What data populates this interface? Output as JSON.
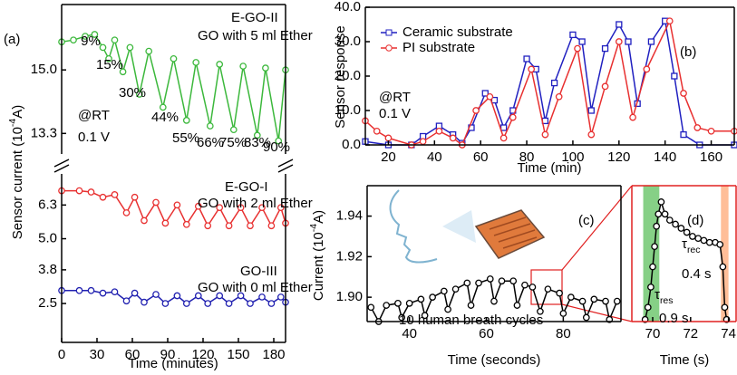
{
  "chart_data": [
    {
      "type": "line",
      "panel_label": "(a)",
      "xlim": [
        0,
        190
      ],
      "ylim": [
        12.75,
        16.75
      ],
      "yticks": [
        13.3,
        {
          "value": 15,
          "label": "15.0"
        }
      ],
      "annotations": [
        "E-GO-II",
        "GO with 5 ml Ether",
        "@RT",
        "0.1 V"
      ],
      "percent_labels": [
        "9%",
        "15%",
        "30%",
        "44%",
        "55%",
        "66%",
        "75%",
        "83%",
        "90%"
      ],
      "series": [
        {
          "name": "E-GO-II",
          "color": "#3cb83c",
          "marker": "circle",
          "x": [
            0,
            10,
            20,
            28,
            35,
            40,
            45,
            52,
            58,
            66,
            74,
            86,
            95,
            106,
            114,
            126,
            134,
            146,
            154,
            166,
            173,
            184,
            190
          ],
          "values": [
            15.75,
            15.8,
            15.9,
            15.95,
            15.6,
            15.3,
            15.8,
            14.95,
            15.6,
            14.35,
            15.5,
            14.0,
            15.3,
            13.65,
            15.2,
            13.5,
            15.15,
            13.4,
            15.1,
            13.25,
            15.05,
            13.1,
            15.0
          ]
        }
      ]
    },
    {
      "type": "line",
      "xlim": [
        0,
        190
      ],
      "xticks": [
        0,
        30,
        60,
        90,
        120,
        150,
        180
      ],
      "xlabel": "Time (minutes)",
      "ylim": [
        1.0,
        7.5
      ],
      "yticks": [
        2.5,
        3.8,
        {
          "value": 5,
          "label": "5.0"
        },
        6.3
      ],
      "ylabel": [
        "Sensor current (10",
        "-4",
        "A)"
      ],
      "annotations": [
        "E-GO-I",
        "GO with 2 ml Ether",
        "GO-III",
        "GO with 0 ml Ether"
      ],
      "series": [
        {
          "name": "E-GO-I",
          "color": "#e83030",
          "marker": "circle",
          "x": [
            0,
            15,
            25,
            35,
            45,
            55,
            62,
            70,
            80,
            88,
            98,
            106,
            116,
            124,
            134,
            142,
            152,
            160,
            170,
            178,
            186,
            190
          ],
          "values": [
            6.85,
            6.85,
            6.8,
            6.6,
            6.7,
            6.0,
            6.6,
            5.7,
            6.4,
            5.6,
            6.3,
            5.55,
            6.25,
            5.5,
            6.2,
            5.5,
            6.2,
            5.5,
            6.2,
            5.5,
            6.2,
            5.6
          ]
        },
        {
          "name": "GO-III",
          "color": "#2020b0",
          "marker": "circle",
          "x": [
            0,
            15,
            25,
            35,
            45,
            55,
            62,
            70,
            80,
            88,
            98,
            106,
            116,
            124,
            134,
            142,
            152,
            160,
            170,
            178,
            186,
            190
          ],
          "values": [
            3.0,
            3.0,
            3.0,
            2.9,
            2.95,
            2.6,
            2.9,
            2.55,
            2.85,
            2.5,
            2.8,
            2.5,
            2.8,
            2.5,
            2.8,
            2.5,
            2.8,
            2.5,
            2.75,
            2.5,
            2.75,
            2.55
          ]
        }
      ]
    },
    {
      "type": "line",
      "panel_label": "(b)",
      "xlim": [
        10,
        170
      ],
      "xticks": [
        20,
        40,
        60,
        80,
        100,
        120,
        140,
        160
      ],
      "xlabel": "Time (min)",
      "ylim": [
        0,
        40
      ],
      "yticks": [
        {
          "value": 0,
          "label": "0.0"
        },
        {
          "value": 10,
          "label": "10.0"
        },
        {
          "value": 20,
          "label": "20.0"
        },
        {
          "value": 30,
          "label": "30.0"
        },
        {
          "value": 40,
          "label": "40.0"
        }
      ],
      "ylabel": "Sensor response",
      "legend": "upper-left",
      "annotations": [
        "@RT",
        "0.1 V"
      ],
      "series": [
        {
          "name": "Ceramic substrate",
          "color": "#2020c0",
          "marker": "square",
          "x": [
            10,
            20,
            30,
            35,
            42,
            48,
            52,
            56,
            62,
            66,
            70,
            74,
            80,
            84,
            88,
            92,
            100,
            104,
            108,
            114,
            120,
            124,
            128,
            134,
            140,
            144,
            148,
            155,
            170
          ],
          "values": [
            1,
            0,
            0,
            2.5,
            5.5,
            3,
            0.5,
            5,
            15,
            13,
            5,
            10,
            25,
            22,
            7,
            18,
            32,
            30,
            10,
            28,
            35,
            30,
            12,
            30,
            36,
            20,
            3,
            0,
            0
          ]
        },
        {
          "name": "PI substrate",
          "color": "#e83030",
          "marker": "circle",
          "x": [
            10,
            15,
            20,
            30,
            35,
            42,
            48,
            52,
            58,
            64,
            70,
            74,
            82,
            88,
            94,
            102,
            108,
            114,
            120,
            126,
            132,
            142,
            148,
            154,
            160,
            170
          ],
          "values": [
            7,
            4,
            2,
            0,
            1,
            4,
            2,
            0,
            10,
            14,
            2,
            8,
            22,
            3,
            14,
            28,
            3,
            17,
            30,
            8,
            22,
            36,
            15,
            5,
            4,
            4
          ]
        }
      ]
    },
    {
      "type": "line",
      "panel_label": "(c)",
      "xlim": [
        29,
        95
      ],
      "xticks": [
        40,
        60,
        80
      ],
      "xlabel": "Time (seconds)",
      "ylim": [
        1.888,
        1.955
      ],
      "yticks": [
        {
          "value": 1.9,
          "label": "1.90"
        },
        1.92,
        1.94
      ],
      "ylabel": [
        "Current (10",
        "-4",
        "A)"
      ],
      "annotations": [
        "10 human breath cycles"
      ],
      "series": [
        {
          "name": "breath",
          "color": "#000000",
          "marker": "circle",
          "x": [
            30,
            32,
            34,
            37,
            38,
            40,
            43,
            44,
            46,
            49,
            50,
            52,
            55,
            56,
            58,
            61,
            62,
            64,
            67,
            68,
            70,
            72,
            74,
            76,
            79,
            80,
            82,
            85,
            86,
            88,
            91,
            92,
            94
          ],
          "values": [
            1.895,
            1.888,
            1.896,
            1.897,
            1.89,
            1.897,
            1.899,
            1.891,
            1.9,
            1.903,
            1.894,
            1.904,
            1.907,
            1.896,
            1.907,
            1.909,
            1.898,
            1.908,
            1.908,
            1.896,
            1.906,
            1.905,
            1.893,
            1.904,
            1.902,
            1.892,
            1.9,
            1.898,
            1.89,
            1.899,
            1.898,
            1.889,
            1.898
          ]
        }
      ]
    },
    {
      "type": "line",
      "panel_label": "(d)",
      "xlim": [
        68.9,
        74.4
      ],
      "xticks": [
        70,
        72,
        74
      ],
      "xlabel": "Time (s)",
      "ylim": [
        1.888,
        1.955
      ],
      "annotations": [
        [
          "τ",
          "rec"
        ],
        "0.4 s",
        [
          "τ",
          "res"
        ],
        "0.9 s"
      ],
      "spans": [
        {
          "xlim": [
            69.5,
            70.35
          ],
          "color": "#22aa22"
        },
        {
          "xlim": [
            73.6,
            74.0
          ],
          "color": "#ff8844"
        }
      ],
      "series": [
        {
          "name": "cycle",
          "color": "#000000",
          "marker": "circle",
          "x": [
            69.6,
            69.75,
            69.9,
            70.0,
            70.1,
            70.2,
            70.3,
            70.45,
            70.65,
            70.9,
            71.2,
            71.5,
            71.8,
            72.1,
            72.4,
            72.7,
            73.0,
            73.3,
            73.55,
            73.7,
            73.8,
            73.9
          ],
          "values": [
            1.889,
            1.895,
            1.905,
            1.915,
            1.925,
            1.935,
            1.941,
            1.947,
            1.941,
            1.938,
            1.936,
            1.934,
            1.932,
            1.93,
            1.929,
            1.928,
            1.927,
            1.927,
            1.926,
            1.915,
            1.895,
            1.889
          ]
        }
      ]
    }
  ]
}
